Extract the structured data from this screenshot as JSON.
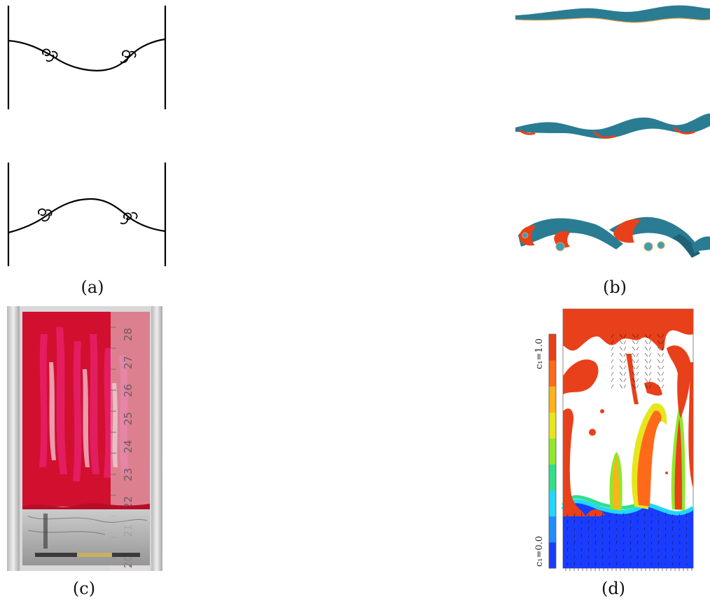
{
  "figure": {
    "captions": {
      "a": "(a)",
      "b": "(b)",
      "c": "(c)",
      "d": "(d)"
    },
    "panel_c": {
      "ruler_labels": [
        "20",
        "21",
        "22",
        "23",
        "24",
        "25",
        "26",
        "27",
        "28"
      ]
    },
    "panel_d": {
      "colorbar_top": "c₁=1.0",
      "colorbar_bottom": "c₁=0.0",
      "colors": [
        "#1a3cff",
        "#1f8cff",
        "#22d6ff",
        "#2fe08a",
        "#8fe82a",
        "#e6e61c",
        "#ffb21a",
        "#ff6a1a",
        "#e8401a"
      ]
    },
    "palette": {
      "sheet_teal": "#2a7c92",
      "sheet_dark": "#1f6276",
      "sheet_red": "#e8401a",
      "dye_red": "#d0102e",
      "dye_pink": "#e8206a"
    }
  }
}
